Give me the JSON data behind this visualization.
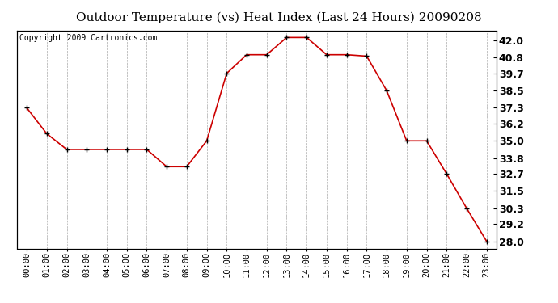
{
  "title": "Outdoor Temperature (vs) Heat Index (Last 24 Hours) 20090208",
  "copyright": "Copyright 2009 Cartronics.com",
  "hours": [
    "00:00",
    "01:00",
    "02:00",
    "03:00",
    "04:00",
    "05:00",
    "06:00",
    "07:00",
    "08:00",
    "09:00",
    "10:00",
    "11:00",
    "12:00",
    "13:00",
    "14:00",
    "15:00",
    "16:00",
    "17:00",
    "18:00",
    "19:00",
    "20:00",
    "21:00",
    "22:00",
    "23:00"
  ],
  "values": [
    37.3,
    35.5,
    34.4,
    34.4,
    34.4,
    34.4,
    34.4,
    33.2,
    33.2,
    35.0,
    39.7,
    41.0,
    41.0,
    42.2,
    42.2,
    41.0,
    41.0,
    40.9,
    38.5,
    35.0,
    35.0,
    32.7,
    30.3,
    28.0
  ],
  "line_color": "#cc0000",
  "marker": "+",
  "marker_size": 5,
  "ylim_min": 27.5,
  "ylim_max": 42.7,
  "yticks": [
    28.0,
    29.2,
    30.3,
    31.5,
    32.7,
    33.8,
    35.0,
    36.2,
    37.3,
    38.5,
    39.7,
    40.8,
    42.0
  ],
  "background_color": "#ffffff",
  "plot_bg_color": "#ffffff",
  "grid_color": "#aaaaaa",
  "title_fontsize": 11,
  "copyright_fontsize": 7,
  "tick_fontsize": 7.5,
  "ytick_fontsize": 9
}
